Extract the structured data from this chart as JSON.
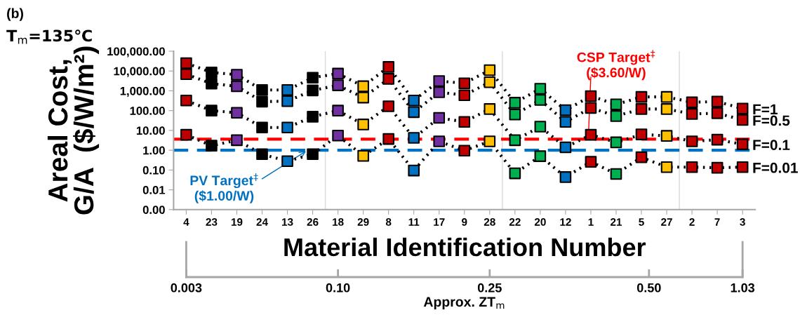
{
  "chart_data": {
    "type": "line",
    "title": "(b)",
    "subtitle": "T$_{m}$=135℃",
    "xlabel": "Material Identification Number",
    "ylabel": "Areal Cost,\nG/A  ($/W/m²)",
    "annotations": [
      "0.003",
      "0.10",
      "0.25",
      "0.50",
      "1.03"
    ],
    "x2label": "Approx. ZT$_{m}$",
    "categories": [
      "4",
      "23",
      "19",
      "24",
      "13",
      "26",
      "18",
      "29",
      "8",
      "11",
      "17",
      "9",
      "28",
      "22",
      "20",
      "12",
      "1",
      "21",
      "5",
      "27",
      "2",
      "7",
      "3"
    ],
    "log": "y",
    "ylim": [
      0.001,
      100000
    ],
    "yticks": [
      {
        "value": 0.001,
        "label": "0.00"
      },
      {
        "value": 0.01,
        "label": "0.01"
      },
      {
        "value": 0.1,
        "label": "0.10"
      },
      {
        "value": 1,
        "label": "1.00"
      },
      {
        "value": 10,
        "label": "10.00"
      },
      {
        "value": 100,
        "label": "100.00"
      },
      {
        "value": 1000,
        "label": "1,000.00"
      },
      {
        "value": 10000,
        "label": "10,000.00"
      },
      {
        "value": 100000,
        "label": "100,000.00"
      }
    ],
    "marker": "square",
    "line_style": "dotted",
    "legend": false,
    "grid": false,
    "series": [
      {
        "name": "F=1",
        "color": "#000000",
        "values": [
          25000,
          8500,
          6500,
          1100,
          1100,
          4600,
          7400,
          1700,
          16000,
          325,
          3100,
          2400,
          11000,
          250,
          1270,
          105,
          540,
          205,
          490,
          490,
          264,
          285,
          126
        ],
        "colors": [
          "#c00000",
          "#000000",
          "#7030a0",
          "#000000",
          "#0070c0",
          "#000000",
          "#7030a0",
          "#ffc000",
          "#c00000",
          "#0070c0",
          "#7030a0",
          "#c00000",
          "#ffc000",
          "#00b050",
          "#00b050",
          "#0070c0",
          "#c00000",
          "#00b050",
          "#c00000",
          "#ffc000",
          "#c00000",
          "#c00000",
          "#c00000"
        ]
      },
      {
        "name": "F=0.5",
        "color": "#000000",
        "values": [
          6900,
          2300,
          1700,
          285,
          300,
          1050,
          1900,
          455,
          4000,
          84,
          850,
          600,
          2700,
          64,
          345,
          27,
          137,
          53,
          120,
          120,
          68,
          74,
          34
        ],
        "colors": [
          "#c00000",
          "#000000",
          "#7030a0",
          "#000000",
          "#0070c0",
          "#000000",
          "#7030a0",
          "#ffc000",
          "#c00000",
          "#0070c0",
          "#7030a0",
          "#c00000",
          "#ffc000",
          "#00b050",
          "#00b050",
          "#0070c0",
          "#c00000",
          "#00b050",
          "#c00000",
          "#ffc000",
          "#c00000",
          "#c00000",
          "#c00000"
        ]
      },
      {
        "name": "F=0.1",
        "color": "#000000",
        "values": [
          325,
          100,
          78,
          14,
          14,
          49,
          100,
          20,
          166,
          4.2,
          43,
          27,
          120,
          3.2,
          15.5,
          1.4,
          6.0,
          2.5,
          6.3,
          5.3,
          2.8,
          3.4,
          2.0
        ],
        "colors": [
          "#c00000",
          "#000000",
          "#7030a0",
          "#000000",
          "#0070c0",
          "#000000",
          "#7030a0",
          "#ffc000",
          "#c00000",
          "#0070c0",
          "#7030a0",
          "#c00000",
          "#ffc000",
          "#00b050",
          "#00b050",
          "#0070c0",
          "#c00000",
          "#00b050",
          "#c00000",
          "#ffc000",
          "#c00000",
          "#c00000",
          "#c00000"
        ]
      },
      {
        "name": "F=0.01",
        "color": "#000000",
        "values": [
          6.0,
          1.7,
          3.2,
          0.63,
          0.28,
          0.63,
          5.5,
          0.52,
          3.7,
          0.094,
          2.8,
          0.95,
          2.8,
          0.068,
          0.5,
          0.044,
          0.26,
          0.063,
          0.44,
          0.14,
          0.14,
          0.13,
          0.14
        ],
        "colors": [
          "#c00000",
          "#000000",
          "#7030a0",
          "#000000",
          "#0070c0",
          "#000000",
          "#7030a0",
          "#ffc000",
          "#c00000",
          "#0070c0",
          "#7030a0",
          "#c00000",
          "#ffc000",
          "#00b050",
          "#00b050",
          "#0070c0",
          "#c00000",
          "#00b050",
          "#c00000",
          "#ffc000",
          "#c00000",
          "#c00000",
          "#c00000"
        ]
      }
    ],
    "ref_lines": [
      {
        "axis": "y",
        "value": 3.6,
        "label": "CSP Target$^{‡}$\n($3.60/W)",
        "color": "#ff0000",
        "line_style": "dashed"
      },
      {
        "axis": "y",
        "value": 1.0,
        "label": "PV Target$^{‡}$\n($1.00/W)",
        "color": "#0070c0",
        "line_style": "dashed"
      }
    ]
  }
}
